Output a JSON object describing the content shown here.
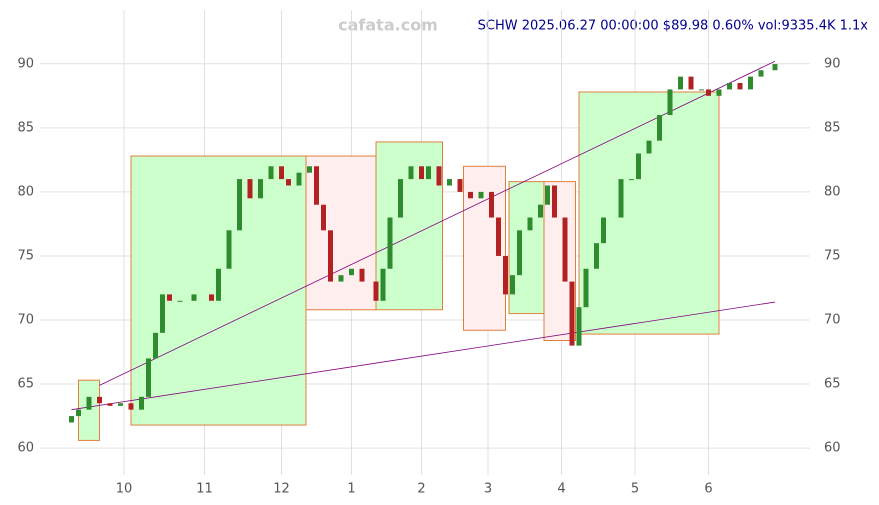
{
  "chart_data": {
    "type": "candlestick",
    "watermark": "cafata.com",
    "title": "SCHW 2025.06.27 00:00:00 $89.98 0.60% vol:9335.4K 1.1x",
    "xlim": [
      -9,
      211
    ],
    "ylim": [
      57.9,
      94.2
    ],
    "xticks": [
      {
        "value": 15,
        "label": "10"
      },
      {
        "value": 38,
        "label": "11"
      },
      {
        "value": 60,
        "label": "12"
      },
      {
        "value": 80,
        "label": "1"
      },
      {
        "value": 100,
        "label": "2"
      },
      {
        "value": 119,
        "label": "3"
      },
      {
        "value": 140,
        "label": "4"
      },
      {
        "value": 161,
        "label": "5"
      },
      {
        "value": 182,
        "label": "6"
      }
    ],
    "yticks": [
      60,
      65,
      70,
      75,
      80,
      85,
      90
    ],
    "grid": true,
    "up_color": "#2e8b2e",
    "down_color": "#b22222",
    "x": [
      0,
      2,
      5,
      8,
      11,
      14,
      17,
      20,
      22,
      24,
      26,
      28,
      31,
      35,
      40,
      42,
      45,
      48,
      51,
      54,
      57,
      60,
      62,
      65,
      68,
      70,
      72,
      74,
      77,
      80,
      83,
      87,
      89,
      91,
      94,
      97,
      100,
      102,
      105,
      108,
      111,
      114,
      117,
      120,
      122,
      124,
      126,
      128,
      131,
      134,
      136,
      138,
      141,
      143,
      145,
      147,
      150,
      152,
      157,
      160,
      162,
      165,
      168,
      171,
      174,
      177,
      180,
      182,
      185,
      188,
      191,
      194,
      197,
      201
    ],
    "open": [
      62,
      62.5,
      63,
      64,
      63.5,
      63.3,
      63.5,
      63,
      64,
      67,
      69,
      72,
      71.5,
      71.5,
      72,
      71.5,
      74,
      77,
      81,
      79.5,
      81,
      82,
      81,
      80.5,
      81.5,
      82,
      79,
      77,
      73,
      73.5,
      74,
      73,
      71.5,
      74,
      78,
      81,
      82,
      81,
      82,
      80.5,
      81,
      80,
      79.5,
      80,
      78,
      75,
      72,
      73.5,
      77,
      78,
      79,
      80.5,
      78,
      73,
      68,
      71,
      74,
      76,
      78,
      81,
      81,
      83,
      84,
      86,
      88,
      89,
      88,
      88,
      87.5,
      88,
      88.5,
      88,
      89,
      89.5
    ],
    "close": [
      62.5,
      63,
      64,
      63.5,
      63.3,
      63.5,
      63,
      64,
      67,
      69,
      72,
      71.5,
      71.5,
      72,
      71.5,
      74,
      77,
      81,
      79.5,
      81,
      82,
      81,
      80.5,
      81.5,
      82,
      79,
      77,
      73,
      73.5,
      74,
      73,
      71.5,
      74,
      78,
      81,
      82,
      81,
      82,
      80.5,
      81,
      80,
      79.5,
      80,
      78,
      75,
      72,
      73.5,
      77,
      78,
      79,
      80.5,
      78,
      73,
      68,
      71,
      74,
      76,
      78,
      81,
      81,
      83,
      84,
      86,
      88,
      89,
      88,
      88,
      87.5,
      88,
      88.5,
      88,
      89,
      89.5,
      89.98
    ],
    "boxes": [
      {
        "x": [
          2,
          8
        ],
        "y": [
          60.6,
          65.3
        ],
        "color": "#ccffcc"
      },
      {
        "x": [
          17,
          67
        ],
        "y": [
          61.8,
          82.8
        ],
        "color": "#ccffcc"
      },
      {
        "x": [
          67,
          87
        ],
        "y": [
          70.8,
          82.8
        ],
        "color": "#ffeeee"
      },
      {
        "x": [
          87,
          106
        ],
        "y": [
          70.8,
          83.9
        ],
        "color": "#ccffcc"
      },
      {
        "x": [
          112,
          124
        ],
        "y": [
          69.2,
          82
        ],
        "color": "#ffeeee"
      },
      {
        "x": [
          125,
          135
        ],
        "y": [
          70.5,
          80.8
        ],
        "color": "#ccffcc"
      },
      {
        "x": [
          135,
          144
        ],
        "y": [
          68.4,
          80.8
        ],
        "color": "#ffeeee"
      },
      {
        "x": [
          145,
          185
        ],
        "y": [
          68.9,
          87.8
        ],
        "color": "#ccffcc"
      }
    ],
    "trend_lines": [
      {
        "x": [
          8,
          201
        ],
        "y": [
          64.9,
          90.2
        ],
        "color": "#800080"
      },
      {
        "x": [
          0,
          201
        ],
        "y": [
          63,
          71.4
        ],
        "color": "#800080"
      }
    ]
  }
}
